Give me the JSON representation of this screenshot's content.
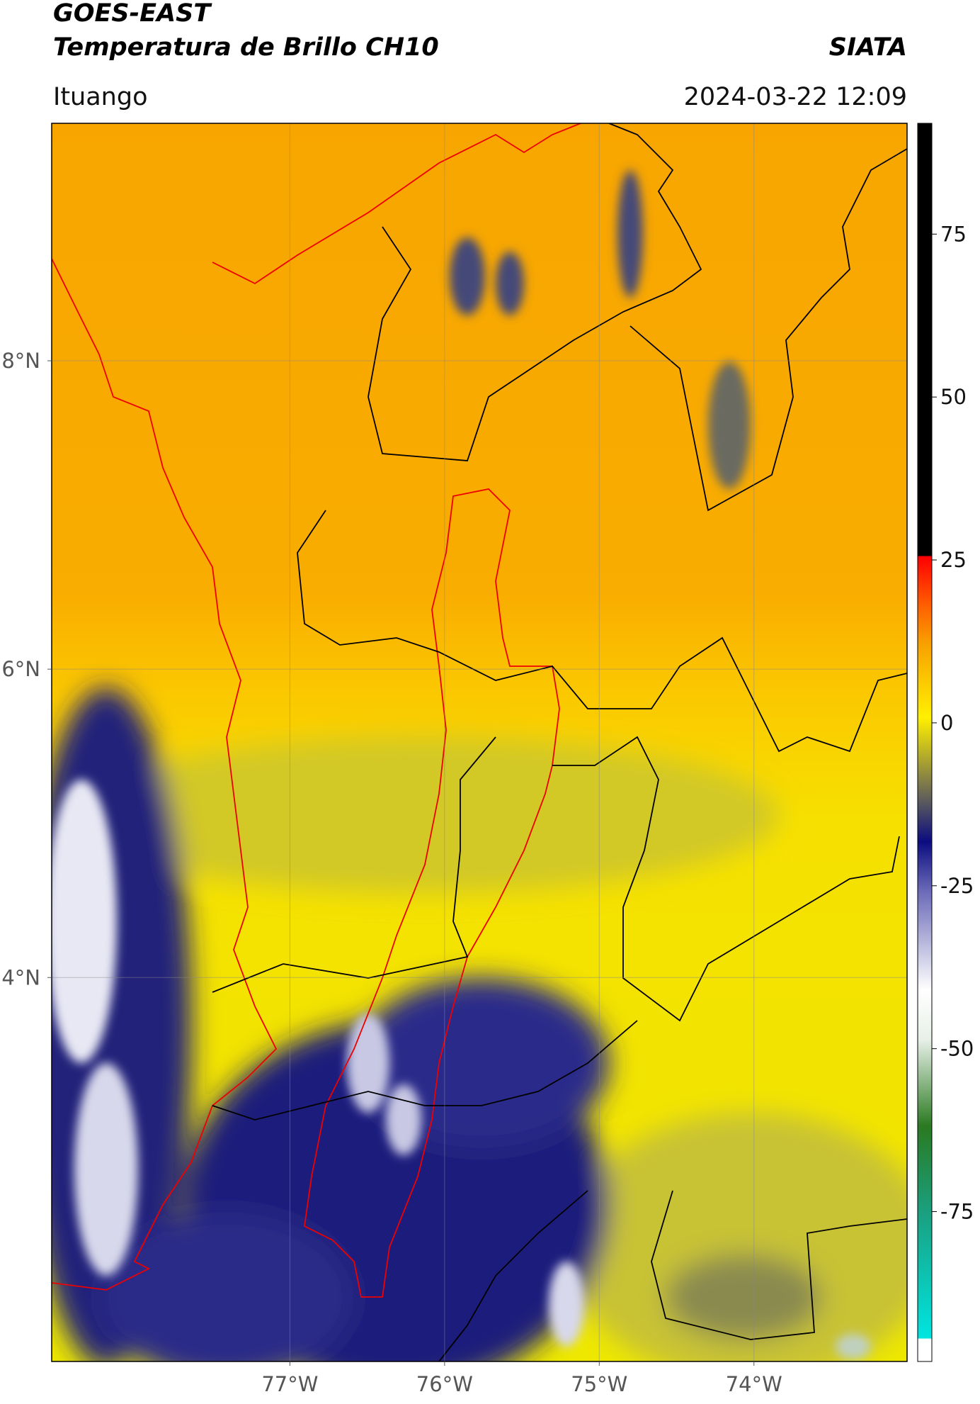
{
  "chart_data": {
    "type": "map",
    "title": "GOES-EAST",
    "subtitle": "Temperatura de Brillo CH10",
    "source": "SIATA",
    "region": "Ituango",
    "timestamp": "2024-03-22 12:09",
    "xlim": [
      -78.54,
      -73.01
    ],
    "ylim": [
      1.51,
      9.54
    ],
    "xticks": [
      {
        "value": -77,
        "label": "77°W"
      },
      {
        "value": -76,
        "label": "76°W"
      },
      {
        "value": -75,
        "label": "75°W"
      },
      {
        "value": -74,
        "label": "74°W"
      }
    ],
    "yticks": [
      {
        "value": 4,
        "label": "4°N"
      },
      {
        "value": 6,
        "label": "6°N"
      },
      {
        "value": 8,
        "label": "8°N"
      }
    ],
    "grid": true,
    "colorbar": {
      "lim": [
        -98,
        92
      ],
      "ticks": [
        75,
        50,
        25,
        0,
        -25,
        -50,
        -75
      ]
    }
  }
}
